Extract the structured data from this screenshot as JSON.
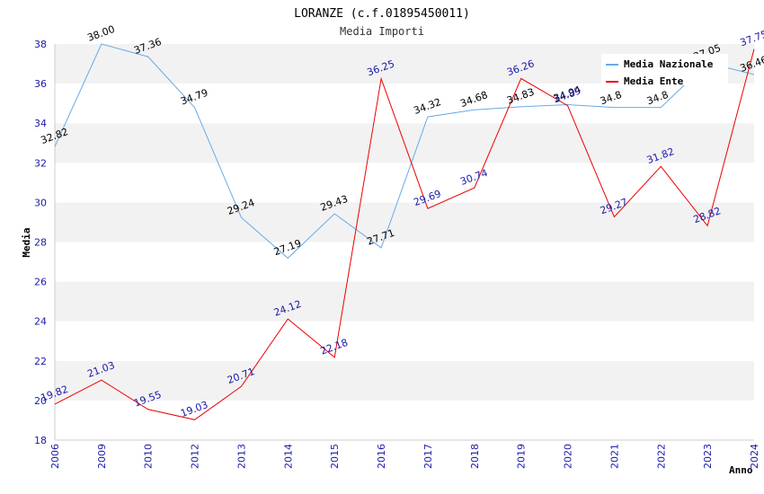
{
  "chart_data": {
    "type": "line",
    "title": "LORANZE (c.f.01895450011)",
    "subtitle": "Media Importi",
    "xlabel": "Anno",
    "ylabel": "Media",
    "categories": [
      "2006",
      "2009",
      "2010",
      "2012",
      "2013",
      "2014",
      "2015",
      "2016",
      "2017",
      "2018",
      "2019",
      "2020",
      "2021",
      "2022",
      "2023",
      "2024"
    ],
    "ylim": [
      18,
      38
    ],
    "yticks": [
      18,
      20,
      22,
      24,
      26,
      28,
      30,
      32,
      34,
      36,
      38
    ],
    "grid": "horizontal alternating bands",
    "legend_position": "top-right",
    "series": [
      {
        "name": "Media Nazionale",
        "color": "#6aaae6",
        "label_color": "#000000",
        "values": [
          32.82,
          38.0,
          37.36,
          34.79,
          29.24,
          27.19,
          29.43,
          27.71,
          34.32,
          34.68,
          34.83,
          34.94,
          34.8,
          34.8,
          37.05,
          36.46
        ],
        "labels": [
          "32.82",
          "38.00",
          "37.36",
          "34.79",
          "29.24",
          "27.19",
          "29.43",
          "27.71",
          "34.32",
          "34.68",
          "34.83",
          "34.94",
          "34.8",
          "34.8",
          "37.05",
          "36.46"
        ]
      },
      {
        "name": "Media Ente",
        "color": "#ee0000",
        "label_color": "#1a1aaa",
        "values": [
          19.82,
          21.03,
          19.55,
          19.03,
          20.71,
          24.12,
          22.18,
          36.25,
          29.69,
          30.74,
          36.26,
          34.89,
          29.27,
          31.82,
          28.82,
          37.75
        ],
        "labels": [
          "19.82",
          "21.03",
          "19.55",
          "19.03",
          "20.71",
          "24.12",
          "22.18",
          "36.25",
          "29.69",
          "30.74",
          "36.26",
          "34.89",
          "29.27",
          "31.82",
          "28.82",
          "37.75"
        ]
      }
    ]
  }
}
